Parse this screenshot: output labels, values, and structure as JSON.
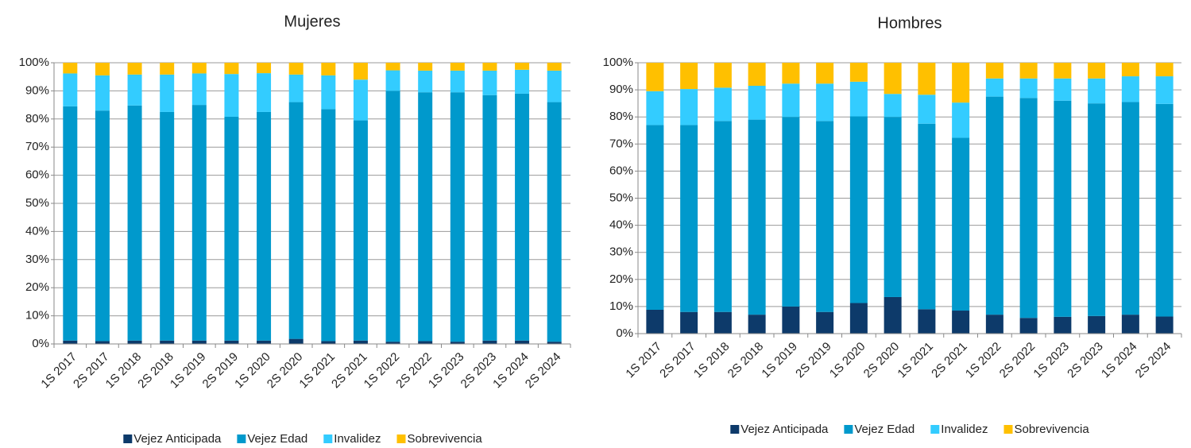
{
  "chart_data": [
    {
      "type": "bar",
      "stacked": true,
      "title": "Mujeres",
      "categories": [
        "1S 2017",
        "2S 2017",
        "1S 2018",
        "2S 2018",
        "1S 2019",
        "2S 2019",
        "1S 2020",
        "2S 2020",
        "1S 2021",
        "2S 2021",
        "1S 2022",
        "2S 2022",
        "1S 2023",
        "2S 2023",
        "1S 2024",
        "2S 2024"
      ],
      "series": [
        {
          "name": "Vejez Anticipada",
          "color": "#0d3a6a",
          "values": [
            1.2,
            1.0,
            1.2,
            1.2,
            1.2,
            1.2,
            1.2,
            1.8,
            1.0,
            1.2,
            0.8,
            1.0,
            0.8,
            1.2,
            1.2,
            0.8
          ]
        },
        {
          "name": "Vejez Edad",
          "color": "#0099cc",
          "values": [
            83.3,
            82,
            83.6,
            81.3,
            83.8,
            79.6,
            81.3,
            84.2,
            82.5,
            78.3,
            89.2,
            88.5,
            88.7,
            87.3,
            87.8,
            85.2
          ]
        },
        {
          "name": "Invalidez",
          "color": "#33ccff",
          "values": [
            11.7,
            12.5,
            11,
            13.3,
            11.2,
            15.2,
            13.8,
            9.8,
            12,
            14.5,
            7.3,
            7.7,
            7.7,
            8.7,
            8.5,
            11.2
          ]
        },
        {
          "name": "Sobrevivencia",
          "color": "#ffc000",
          "values": [
            3.8,
            4.5,
            4.2,
            4.2,
            3.8,
            4,
            3.7,
            4.2,
            4.5,
            6,
            2.7,
            2.8,
            2.8,
            2.8,
            2.5,
            2.8
          ]
        }
      ],
      "ylim": [
        0,
        100
      ],
      "yticks": [
        {
          "value": 0,
          "label": "0%"
        },
        {
          "value": 10,
          "label": "10%"
        },
        {
          "value": 20,
          "label": "20%"
        },
        {
          "value": 30,
          "label": "30%"
        },
        {
          "value": 40,
          "label": "40%"
        },
        {
          "value": 50,
          "label": "50%"
        },
        {
          "value": 60,
          "label": "60%"
        },
        {
          "value": 70,
          "label": "70%"
        },
        {
          "value": 80,
          "label": "80%"
        },
        {
          "value": 90,
          "label": "90%"
        },
        {
          "value": 100,
          "label": "100%"
        }
      ],
      "grid": true,
      "legend": "bottom"
    },
    {
      "type": "bar",
      "stacked": true,
      "title": "Hombres",
      "categories": [
        "1S 2017",
        "2S 2017",
        "1S 2018",
        "2S 2018",
        "1S 2019",
        "2S 2019",
        "1S 2020",
        "2S 2020",
        "1S 2021",
        "2S 2021",
        "1S 2022",
        "2S 2022",
        "1S 2023",
        "2S 2023",
        "1S 2024",
        "2S 2024"
      ],
      "series": [
        {
          "name": "Vejez Anticipada",
          "color": "#0d3a6a",
          "values": [
            8.8,
            8,
            8,
            7,
            10,
            8,
            11.3,
            13.5,
            9,
            8.5,
            7,
            5.8,
            6.2,
            6.5,
            7,
            6.3
          ]
        },
        {
          "name": "Vejez Edad",
          "color": "#0099cc",
          "values": [
            68.2,
            69,
            70.5,
            72,
            70,
            70.5,
            68.9,
            66.5,
            68.5,
            63.8,
            80.5,
            81.2,
            79.8,
            78.5,
            78.5,
            78.5
          ]
        },
        {
          "name": "Invalidez",
          "color": "#33ccff",
          "values": [
            12.5,
            13.3,
            12.3,
            12.5,
            12.3,
            13.8,
            12.8,
            8.5,
            10.7,
            13,
            6.7,
            7.2,
            8.2,
            9.2,
            9.5,
            10.2
          ]
        },
        {
          "name": "Sobrevivencia",
          "color": "#ffc000",
          "values": [
            10.5,
            9.7,
            9.2,
            8.5,
            7.7,
            7.7,
            7,
            11.5,
            11.8,
            14.7,
            5.8,
            5.8,
            5.8,
            5.8,
            5,
            5
          ]
        }
      ],
      "ylim": [
        0,
        100
      ],
      "yticks": [
        {
          "value": 0,
          "label": "0%"
        },
        {
          "value": 10,
          "label": "10%"
        },
        {
          "value": 20,
          "label": "20%"
        },
        {
          "value": 30,
          "label": "30%"
        },
        {
          "value": 40,
          "label": "40%"
        },
        {
          "value": 50,
          "label": "50%"
        },
        {
          "value": 60,
          "label": "60%"
        },
        {
          "value": 70,
          "label": "70%"
        },
        {
          "value": 80,
          "label": "80%"
        },
        {
          "value": 90,
          "label": "90%"
        },
        {
          "value": 100,
          "label": "100%"
        }
      ],
      "grid": true,
      "legend": "bottom"
    }
  ]
}
